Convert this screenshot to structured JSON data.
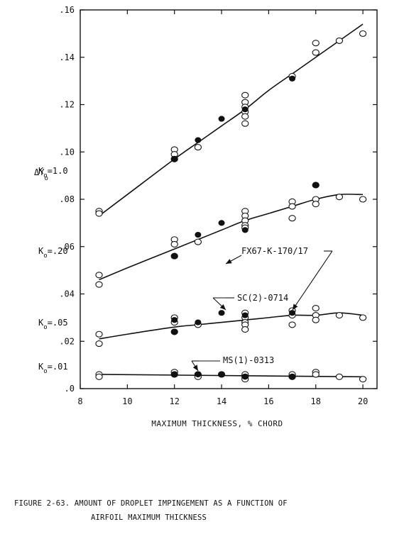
{
  "chart_data": {
    "type": "scatter",
    "xlabel": "MAXIMUM THICKNESS, % CHORD",
    "ylabel": "ΔY",
    "ylabel_sub": "o",
    "xlim": [
      8,
      20.6
    ],
    "ylim": [
      0,
      0.16
    ],
    "xticks": [
      8,
      10,
      12,
      14,
      16,
      18,
      20
    ],
    "yticks": [
      0,
      0.02,
      0.04,
      0.06,
      0.08,
      0.1,
      0.12,
      0.14,
      0.16
    ],
    "ytick_labels": [
      ".0",
      ".02",
      ".04",
      ".06",
      ".08",
      ".10",
      ".12",
      ".14",
      ".16"
    ],
    "xtick_labels": [
      "8",
      "10",
      "12",
      "14",
      "16",
      "18",
      "20"
    ],
    "series": [
      {
        "label_prefix": "K",
        "label_sub": "o",
        "label_value": "=1.0",
        "open": [
          [
            8.8,
            0.075
          ],
          [
            8.8,
            0.074
          ],
          [
            12,
            0.101
          ],
          [
            12,
            0.099
          ],
          [
            12,
            0.097
          ],
          [
            13,
            0.102
          ],
          [
            15,
            0.124
          ],
          [
            15,
            0.121
          ],
          [
            15,
            0.119
          ],
          [
            15,
            0.117
          ],
          [
            15,
            0.115
          ],
          [
            15,
            0.112
          ],
          [
            17,
            0.132
          ],
          [
            18,
            0.146
          ],
          [
            18,
            0.142
          ],
          [
            19,
            0.147
          ],
          [
            20,
            0.15
          ]
        ],
        "filled": [
          [
            12,
            0.097
          ],
          [
            13,
            0.105
          ],
          [
            14,
            0.114
          ],
          [
            15,
            0.118
          ],
          [
            17,
            0.131
          ]
        ],
        "curve": [
          [
            8.8,
            0.073
          ],
          [
            10,
            0.082
          ],
          [
            12,
            0.097
          ],
          [
            13,
            0.104
          ],
          [
            14,
            0.111
          ],
          [
            15,
            0.118
          ],
          [
            16,
            0.126
          ],
          [
            17,
            0.133
          ],
          [
            18,
            0.14
          ],
          [
            19,
            0.147
          ],
          [
            20,
            0.154
          ]
        ]
      },
      {
        "label_prefix": "K",
        "label_sub": "o",
        "label_value": "=.20",
        "open": [
          [
            8.8,
            0.048
          ],
          [
            8.8,
            0.044
          ],
          [
            12,
            0.063
          ],
          [
            12,
            0.061
          ],
          [
            12,
            0.056
          ],
          [
            13,
            0.062
          ],
          [
            15,
            0.075
          ],
          [
            15,
            0.073
          ],
          [
            15,
            0.071
          ],
          [
            15,
            0.069
          ],
          [
            15,
            0.068
          ],
          [
            17,
            0.079
          ],
          [
            17,
            0.077
          ],
          [
            17,
            0.072
          ],
          [
            18,
            0.086
          ],
          [
            18,
            0.08
          ],
          [
            18,
            0.078
          ],
          [
            19,
            0.081
          ],
          [
            20,
            0.08
          ]
        ],
        "filled": [
          [
            12,
            0.056
          ],
          [
            13,
            0.065
          ],
          [
            14,
            0.07
          ],
          [
            15,
            0.067
          ],
          [
            18,
            0.086
          ]
        ],
        "curve": [
          [
            8.8,
            0.046
          ],
          [
            10,
            0.051
          ],
          [
            12,
            0.059
          ],
          [
            13,
            0.063
          ],
          [
            14,
            0.067
          ],
          [
            15,
            0.071
          ],
          [
            16,
            0.074
          ],
          [
            17,
            0.077
          ],
          [
            18,
            0.08
          ],
          [
            19,
            0.082
          ],
          [
            20,
            0.082
          ]
        ]
      },
      {
        "label_prefix": "K",
        "label_sub": "o",
        "label_value": "=.05",
        "open": [
          [
            8.8,
            0.023
          ],
          [
            8.8,
            0.019
          ],
          [
            12,
            0.03
          ],
          [
            12,
            0.028
          ],
          [
            12,
            0.024
          ],
          [
            13,
            0.027
          ],
          [
            15,
            0.032
          ],
          [
            15,
            0.03
          ],
          [
            15,
            0.028
          ],
          [
            15,
            0.027
          ],
          [
            15,
            0.025
          ],
          [
            17,
            0.033
          ],
          [
            17,
            0.031
          ],
          [
            17,
            0.027
          ],
          [
            18,
            0.034
          ],
          [
            18,
            0.031
          ],
          [
            18,
            0.029
          ],
          [
            19,
            0.031
          ],
          [
            20,
            0.03
          ]
        ],
        "filled": [
          [
            12,
            0.029
          ],
          [
            12,
            0.024
          ],
          [
            13,
            0.028
          ],
          [
            14,
            0.032
          ],
          [
            15,
            0.031
          ],
          [
            17,
            0.032
          ]
        ],
        "curve": [
          [
            8.8,
            0.021
          ],
          [
            10,
            0.023
          ],
          [
            12,
            0.026
          ],
          [
            13,
            0.027
          ],
          [
            14,
            0.028
          ],
          [
            15,
            0.029
          ],
          [
            16,
            0.03
          ],
          [
            17,
            0.031
          ],
          [
            18,
            0.031
          ],
          [
            19,
            0.032
          ],
          [
            20,
            0.031
          ]
        ]
      },
      {
        "label_prefix": "K",
        "label_sub": "o",
        "label_value": "=.01",
        "open": [
          [
            8.8,
            0.006
          ],
          [
            8.8,
            0.005
          ],
          [
            12,
            0.007
          ],
          [
            12,
            0.006
          ],
          [
            13,
            0.006
          ],
          [
            13,
            0.005
          ],
          [
            14,
            0.006
          ],
          [
            15,
            0.006
          ],
          [
            15,
            0.005
          ],
          [
            15,
            0.004
          ],
          [
            17,
            0.006
          ],
          [
            17,
            0.005
          ],
          [
            18,
            0.007
          ],
          [
            18,
            0.006
          ],
          [
            19,
            0.005
          ],
          [
            20,
            0.004
          ]
        ],
        "filled": [
          [
            12,
            0.006
          ],
          [
            13,
            0.006
          ],
          [
            14,
            0.006
          ],
          [
            15,
            0.005
          ],
          [
            17,
            0.005
          ]
        ],
        "curve": [
          [
            8.8,
            0.006
          ],
          [
            20,
            0.005
          ]
        ]
      }
    ],
    "annotations": {
      "fx67": "FX67-K-170/17",
      "sc2": "SC(2)-0714",
      "ms1": "MS(1)-0313"
    }
  },
  "caption": {
    "line1": "FIGURE 2-63.  AMOUNT OF DROPLET IMPINGEMENT AS A FUNCTION OF",
    "line2": "AIRFOIL MAXIMUM THICKNESS"
  }
}
